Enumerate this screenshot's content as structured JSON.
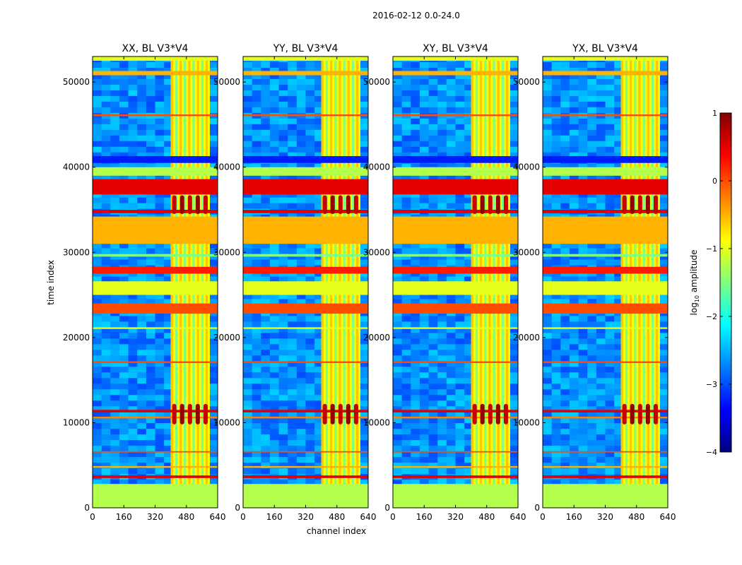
{
  "suptitle": "2016-02-12 0.0-24.0",
  "chart_data": {
    "type": "heatmap",
    "xlabel": "channel index",
    "ylabel": "time index",
    "xlim": [
      0,
      640
    ],
    "ylim": [
      0,
      53000
    ],
    "xticks": [
      0,
      160,
      320,
      480,
      640
    ],
    "yticks": [
      0,
      10000,
      20000,
      30000,
      40000,
      50000
    ],
    "panels": [
      {
        "title": "XX, BL V3*V4",
        "active_band": [
          400,
          600
        ]
      },
      {
        "title": "YY, BL V3*V4",
        "active_band": [
          400,
          600
        ]
      },
      {
        "title": "XY, BL V3*V4",
        "active_band": [
          400,
          600
        ]
      },
      {
        "title": "YX, BL V3*V4",
        "active_band": [
          400,
          600
        ]
      }
    ],
    "colorbar": {
      "label": "log10 amplitude",
      "label_main": "log",
      "label_sub": "10",
      "label_rest": " amplitude",
      "range": [
        -4,
        1
      ],
      "ticks": [
        "1",
        "0",
        "−1",
        "−2",
        "−3",
        "−4"
      ],
      "colormap": "jet"
    },
    "bright_rows": [
      [
        0,
        2800,
        0.55
      ],
      [
        3500,
        3800,
        0.9
      ],
      [
        4700,
        4900,
        0.7
      ],
      [
        6500,
        6650,
        0.8
      ],
      [
        10500,
        10700,
        0.75
      ],
      [
        11200,
        11500,
        0.9
      ],
      [
        17000,
        17200,
        0.8
      ],
      [
        21000,
        21200,
        0.6
      ],
      [
        22800,
        24000,
        0.8
      ],
      [
        25000,
        26600,
        0.6
      ],
      [
        27500,
        28300,
        0.85
      ],
      [
        29500,
        29800,
        0.5
      ],
      [
        31000,
        34200,
        0.7
      ],
      [
        34600,
        35000,
        0.9
      ],
      [
        36800,
        38600,
        0.9
      ],
      [
        39000,
        40000,
        0.55
      ],
      [
        40500,
        41300,
        0.15
      ],
      [
        46000,
        46200,
        0.8
      ],
      [
        50800,
        51300,
        0.7
      ],
      [
        52500,
        53000,
        0.6
      ]
    ],
    "hot_rows": [
      [
        9800,
        12200
      ],
      [
        34500,
        36700
      ]
    ]
  }
}
